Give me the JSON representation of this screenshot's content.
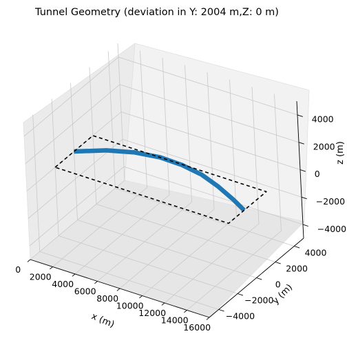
{
  "chart_data": {
    "type": "line3d",
    "title": "Tunnel Geometry (deviation in Y: 2004 m,Z: 0 m)",
    "xlabel": "x (m)",
    "ylabel": "y (m)",
    "zlabel": "z (m)",
    "xlim": [
      0,
      16000
    ],
    "ylim": [
      -5000,
      5000
    ],
    "zlim": [
      -5000,
      5000
    ],
    "x_ticks": [
      "0",
      "2000",
      "4000",
      "6000",
      "8000",
      "10000",
      "12000",
      "14000",
      "16000"
    ],
    "y_ticks": [
      "−4000",
      "−2000",
      "0",
      "2000",
      "4000"
    ],
    "z_ticks": [
      "−4000",
      "−2000",
      "0",
      "2000",
      "4000"
    ],
    "grid": true,
    "series": [
      {
        "kind": "tunnel-path",
        "style": "solid",
        "color": "#1f77b4",
        "x": [
          0,
          2000,
          4000,
          6000,
          8000,
          10000,
          12000,
          14000,
          15500
        ],
        "y": [
          0,
          1050,
          1700,
          2004,
          1950,
          1650,
          1050,
          300,
          -350
        ],
        "z": [
          0,
          0,
          0,
          0,
          0,
          0,
          0,
          0,
          0
        ]
      },
      {
        "kind": "reference-rectangle",
        "style": "dashed",
        "color": "#000000",
        "x": [
          0,
          0,
          15500,
          15500,
          0
        ],
        "y": [
          -2000,
          2000,
          2000,
          -2000,
          -2000
        ],
        "z": [
          0,
          0,
          0,
          0,
          0
        ]
      }
    ]
  }
}
